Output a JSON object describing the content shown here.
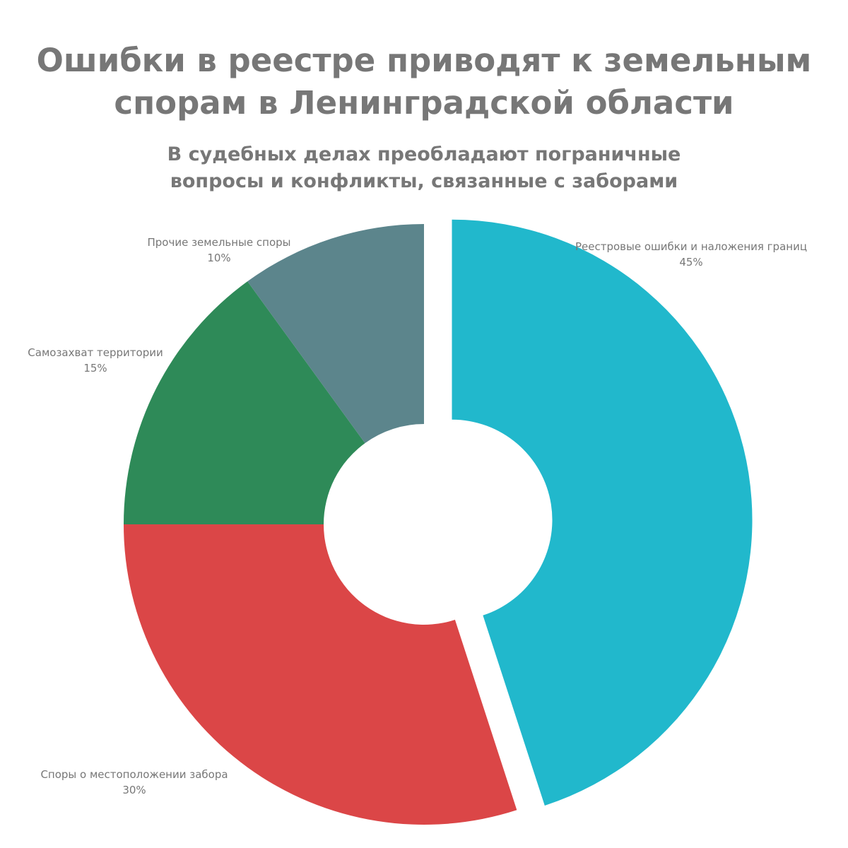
{
  "title": {
    "line1": "Ошибки в реестре приводят к земельным",
    "line2": "спорам в Ленинградской области"
  },
  "subtitle": {
    "line1": "В судебных делах преобладают пограничные",
    "line2": "вопросы и конфликты, связанные с заборами"
  },
  "chart_data": {
    "type": "pie",
    "style": "donut",
    "categories": [
      "Реестровые ошибки и наложения границ",
      "Споры о местоположении забора",
      "Самозахват территории",
      "Прочие земельные споры"
    ],
    "values": [
      45,
      30,
      15,
      10
    ],
    "value_labels": [
      "45%",
      "30%",
      "15%",
      "10%"
    ],
    "colors": [
      "#21b8cc",
      "#db4647",
      "#2e8a58",
      "#5c858c"
    ],
    "exploded": [
      true,
      false,
      false,
      false
    ],
    "start_angle_deg": 0,
    "direction": "clockwise",
    "legend": "none",
    "labels_position": "outside"
  }
}
